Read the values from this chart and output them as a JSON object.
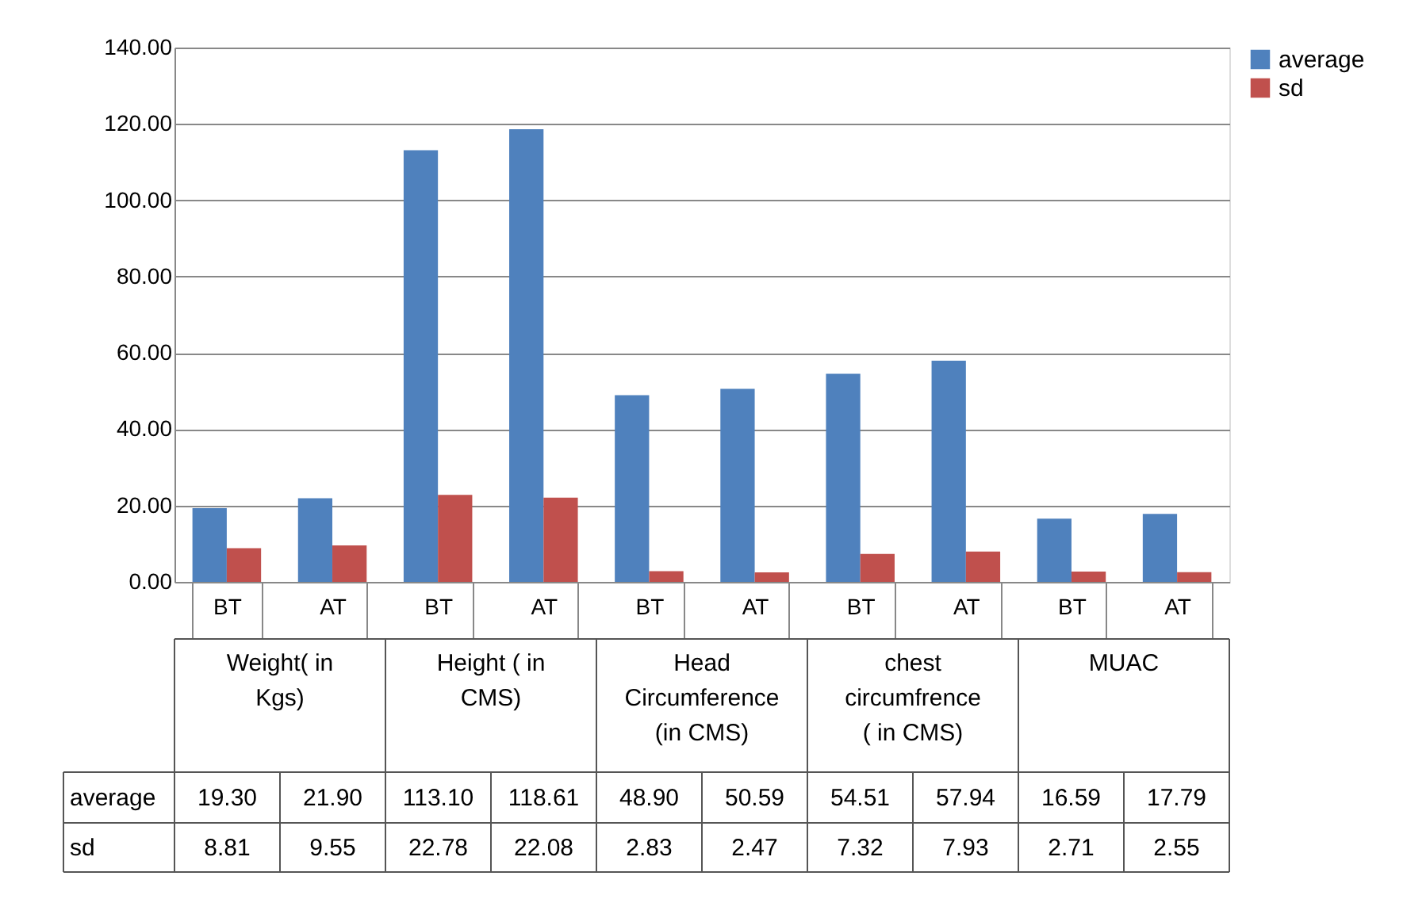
{
  "chart_data": {
    "type": "bar",
    "categories": [
      "BT",
      "AT",
      "BT",
      "AT",
      "BT",
      "AT",
      "BT",
      "AT",
      "BT",
      "AT"
    ],
    "annotations": [
      "Weight( in Kgs)",
      "Height ( in CMS)",
      "Head Circumference (in CMS)",
      "chest circumfrence ( in CMS)",
      "MUAC"
    ],
    "series": [
      {
        "name": "average",
        "color": "#4f81bd",
        "values": [
          19.3,
          21.9,
          113.1,
          118.61,
          48.9,
          50.59,
          54.51,
          57.94,
          16.59,
          17.79
        ],
        "value_labels": [
          "19.30",
          "21.90",
          "113.10",
          "118.61",
          "48.90",
          "50.59",
          "54.51",
          "57.94",
          "16.59",
          "17.79"
        ]
      },
      {
        "name": "sd",
        "color": "#c0504d",
        "values": [
          8.81,
          9.55,
          22.78,
          22.08,
          2.83,
          2.47,
          7.32,
          7.93,
          2.71,
          2.55
        ],
        "value_labels": [
          "8.81",
          "9.55",
          "22.78",
          "22.08",
          "2.83",
          "2.47",
          "7.32",
          "7.93",
          "2.71",
          "2.55"
        ]
      }
    ],
    "ylim": [
      0,
      140
    ],
    "yticks": [
      {
        "value": 0,
        "label": "0.00"
      },
      {
        "value": 20,
        "label": "20.00"
      },
      {
        "value": 40,
        "label": "40.00"
      },
      {
        "value": 60,
        "label": "60.00"
      },
      {
        "value": 80,
        "label": "80.00"
      },
      {
        "value": 100,
        "label": "100.00"
      },
      {
        "value": 120,
        "label": "120.00"
      },
      {
        "value": 140,
        "label": "140.00"
      }
    ],
    "grid": "y",
    "legend": "right"
  }
}
